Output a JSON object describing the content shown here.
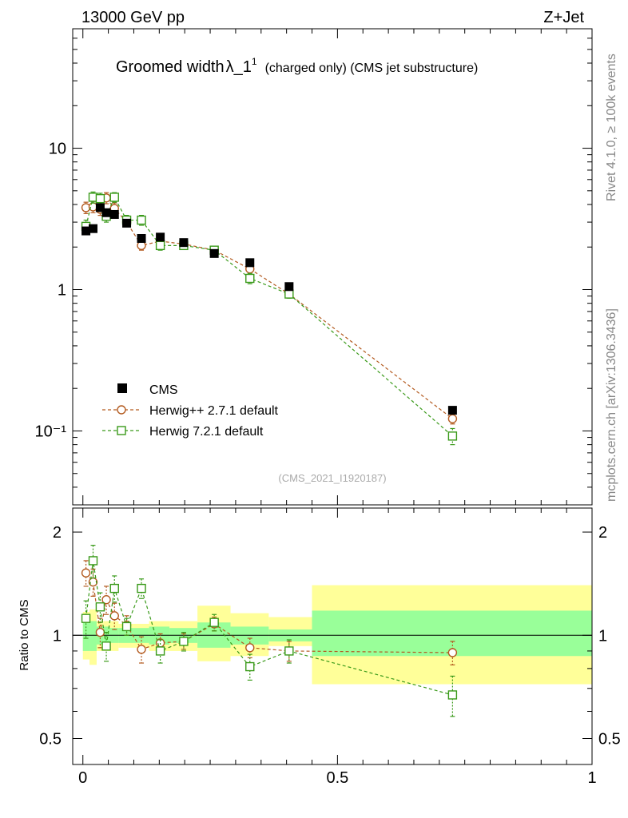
{
  "header": {
    "left": "13000 GeV pp",
    "right": "Z+Jet"
  },
  "side_text": {
    "rivet": "Rivet 4.1.0, ≥ 100k events",
    "mcplots": "mcplots.cern.ch [arXiv:1306.3436]"
  },
  "colors": {
    "cms": "#000000",
    "herwigpp": "#b35a1f",
    "herwig7": "#3a9a1a",
    "band_yellow": "#ffff99",
    "band_green": "#99ff99"
  },
  "chart_data": [
    {
      "type": "scatter",
      "title": "Groomed width",
      "title_symbol": "λ_1",
      "title_superscript": "1",
      "subtitle": "(charged only) (CMS jet substructure)",
      "analysis_label": "(CMS_2021_I1920187)",
      "yscale": "log",
      "xlim": [
        -0.02,
        1.0
      ],
      "ylim": [
        0.03,
        70
      ],
      "ytick_labels": {
        "0.1": "10⁻¹",
        "1": "1",
        "10": "10"
      },
      "legend": {
        "placement": "bottom-left",
        "entries": [
          "CMS",
          "Herwig++ 2.7.1 default",
          "Herwig 7.2.1 default"
        ]
      },
      "series": [
        {
          "name": "CMS",
          "style": "marker",
          "x": [
            0.006,
            0.02,
            0.034,
            0.046,
            0.062,
            0.086,
            0.115,
            0.152,
            0.198,
            0.258,
            0.328,
            0.405,
            0.726
          ],
          "y": [
            2.6,
            2.7,
            3.8,
            3.5,
            3.4,
            2.95,
            2.3,
            2.35,
            2.15,
            1.8,
            1.55,
            1.05,
            0.14
          ]
        },
        {
          "name": "Herwig++ 2.7.1 default",
          "style": "circle",
          "x": [
            0.006,
            0.02,
            0.034,
            0.046,
            0.062,
            0.086,
            0.115,
            0.152,
            0.198,
            0.258,
            0.328,
            0.405,
            0.726
          ],
          "y": [
            3.8,
            3.85,
            3.7,
            4.45,
            3.75,
            3.0,
            2.05,
            2.2,
            2.1,
            1.9,
            1.4,
            0.93,
            0.122
          ],
          "yerr": [
            0.35,
            0.35,
            0.35,
            0.4,
            0.35,
            0.2,
            0.15,
            0.12,
            0.1,
            0.08,
            0.08,
            0.05,
            0.01
          ]
        },
        {
          "name": "Herwig 7.2.1 default",
          "style": "square",
          "x": [
            0.006,
            0.02,
            0.034,
            0.046,
            0.062,
            0.086,
            0.115,
            0.152,
            0.198,
            0.258,
            0.328,
            0.405,
            0.726
          ],
          "y": [
            2.8,
            4.5,
            4.4,
            3.3,
            4.5,
            3.1,
            3.1,
            2.05,
            2.05,
            1.9,
            1.2,
            0.93,
            0.092
          ],
          "yerr": [
            0.3,
            0.4,
            0.4,
            0.3,
            0.35,
            0.25,
            0.25,
            0.15,
            0.1,
            0.1,
            0.1,
            0.06,
            0.012
          ]
        }
      ]
    },
    {
      "type": "scatter",
      "ylabel": "Ratio to CMS",
      "xlim": [
        -0.02,
        1.0
      ],
      "ylim": [
        0.42,
        2.35
      ],
      "ytick_labels": [
        "0.5",
        "1",
        "2"
      ],
      "xtick_labels": [
        "0",
        "0.5",
        "1"
      ],
      "bands": {
        "edges": [
          0.0,
          0.013,
          0.027,
          0.04,
          0.053,
          0.07,
          0.1,
          0.13,
          0.17,
          0.225,
          0.29,
          0.365,
          0.45,
          1.0
        ],
        "yellow_lo": [
          0.85,
          0.82,
          0.9,
          0.9,
          0.9,
          0.92,
          0.92,
          0.9,
          0.9,
          0.84,
          0.87,
          0.93,
          0.72
        ],
        "yellow_hi": [
          1.17,
          1.19,
          1.1,
          1.1,
          1.1,
          1.08,
          1.08,
          1.1,
          1.1,
          1.22,
          1.16,
          1.13,
          1.4
        ],
        "green_lo": [
          0.9,
          0.9,
          0.94,
          0.94,
          0.95,
          0.95,
          0.95,
          0.94,
          0.95,
          0.92,
          0.94,
          0.96,
          0.87
        ],
        "green_hi": [
          1.1,
          1.1,
          1.06,
          1.06,
          1.05,
          1.05,
          1.05,
          1.06,
          1.05,
          1.09,
          1.06,
          1.04,
          1.18
        ]
      },
      "series": [
        {
          "name": "Herwig++ 2.7.1 default",
          "style": "circle",
          "x": [
            0.006,
            0.02,
            0.034,
            0.046,
            0.062,
            0.086,
            0.115,
            0.152,
            0.198,
            0.258,
            0.328,
            0.405,
            0.726
          ],
          "y": [
            1.52,
            1.43,
            1.02,
            1.27,
            1.14,
            1.07,
            0.91,
            0.95,
            0.96,
            1.08,
            0.92,
            0.9,
            0.89
          ],
          "yerr": [
            0.13,
            0.13,
            0.1,
            0.12,
            0.1,
            0.07,
            0.08,
            0.06,
            0.05,
            0.05,
            0.06,
            0.06,
            0.07
          ]
        },
        {
          "name": "Herwig 7.2.1 default",
          "style": "square",
          "x": [
            0.006,
            0.02,
            0.034,
            0.046,
            0.062,
            0.086,
            0.115,
            0.152,
            0.198,
            0.258,
            0.328,
            0.405,
            0.726
          ],
          "y": [
            1.12,
            1.65,
            1.21,
            0.93,
            1.37,
            1.06,
            1.37,
            0.9,
            0.96,
            1.09,
            0.81,
            0.9,
            0.67
          ],
          "yerr": [
            0.14,
            0.18,
            0.12,
            0.09,
            0.12,
            0.06,
            0.09,
            0.07,
            0.06,
            0.06,
            0.07,
            0.07,
            0.09
          ]
        }
      ]
    }
  ]
}
